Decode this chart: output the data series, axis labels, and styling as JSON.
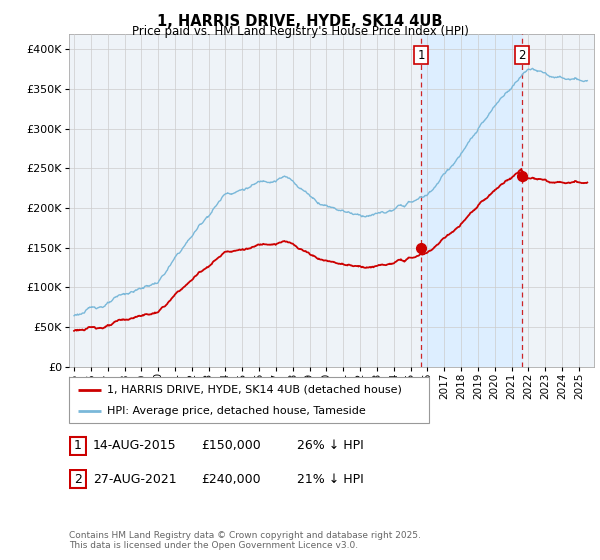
{
  "title": "1, HARRIS DRIVE, HYDE, SK14 4UB",
  "subtitle": "Price paid vs. HM Land Registry's House Price Index (HPI)",
  "legend_line1": "1, HARRIS DRIVE, HYDE, SK14 4UB (detached house)",
  "legend_line2": "HPI: Average price, detached house, Tameside",
  "purchase1_date": "14-AUG-2015",
  "purchase1_price": 150000,
  "purchase1_pct": "26% ↓ HPI",
  "purchase2_date": "27-AUG-2021",
  "purchase2_price": 240000,
  "purchase2_pct": "21% ↓ HPI",
  "footnote": "Contains HM Land Registry data © Crown copyright and database right 2025.\nThis data is licensed under the Open Government Licence v3.0.",
  "ylim": [
    0,
    420000
  ],
  "yticks": [
    0,
    50000,
    100000,
    150000,
    200000,
    250000,
    300000,
    350000,
    400000
  ],
  "hpi_color": "#7ab8d9",
  "price_color": "#cc0000",
  "vline_color": "#cc0000",
  "shade_color": "#ddeeff",
  "bg_color": "#eef3f8",
  "grid_color": "#cccccc",
  "t1": 2015.625,
  "t2": 2021.625,
  "p1_price": 150000,
  "p2_price": 240000,
  "xmin": 1994.7,
  "xmax": 2025.9
}
